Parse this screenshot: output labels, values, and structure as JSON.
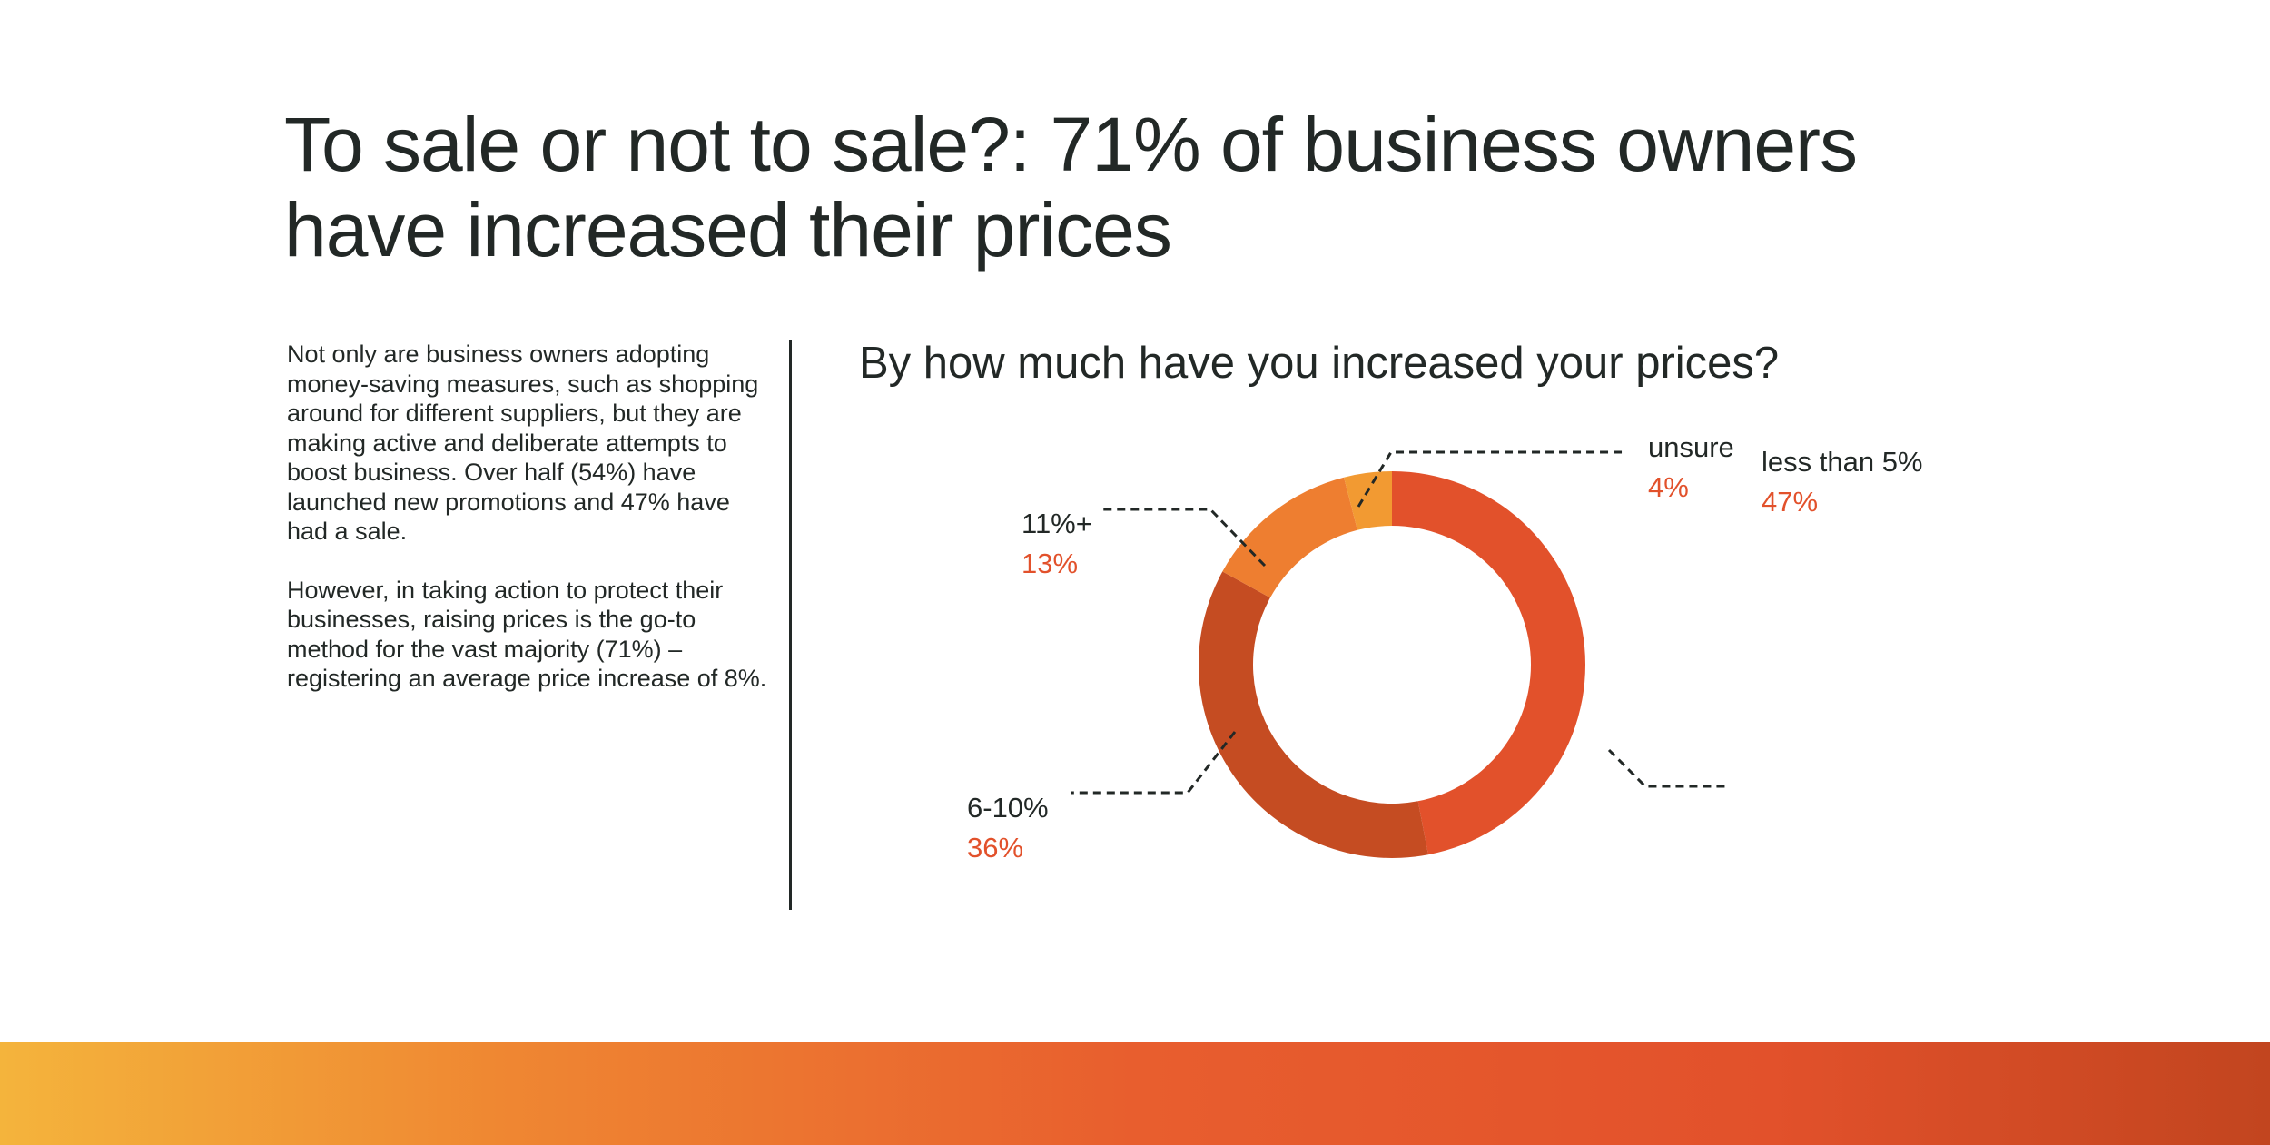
{
  "headline": "To sale or not to sale?: 71% of business owners have increased their prices",
  "intro": {
    "paragraph_1": "Not only are business owners adopting money-saving measures, such as shopping around for different suppliers, but they are making active and deliberate attempts to boost business. Over half (54%) have launched new promotions and 47% have had a sale.",
    "paragraph_2": "However, in taking action to protect their businesses, raising prices is the go-to method for the vast majority (71%) – registering an average price increase of 8%."
  },
  "chart_data": {
    "type": "pie",
    "title": "By how much have you increased your prices?",
    "donut": true,
    "unit": "%",
    "slices": [
      {
        "label": "less than 5%",
        "value": 47,
        "value_label": "47%",
        "color": "#e2512b"
      },
      {
        "label": "6-10%",
        "value": 36,
        "value_label": "36%",
        "color": "#c54c22"
      },
      {
        "label": "11%+",
        "value": 13,
        "value_label": "13%",
        "color": "#ee7e30"
      },
      {
        "label": "unsure",
        "value": 4,
        "value_label": "4%",
        "color": "#f29a32"
      }
    ],
    "value_label_color": "#e2512b"
  }
}
